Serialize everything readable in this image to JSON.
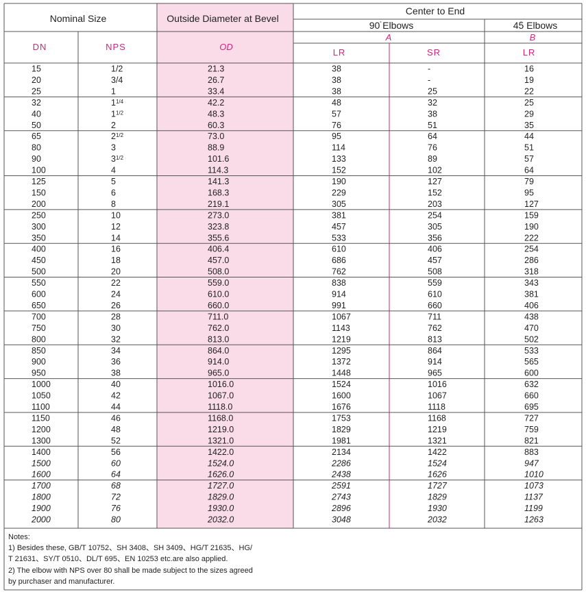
{
  "header": {
    "nominal_size": "Nominal Size",
    "outside_diameter": "Outside Diameter at Bevel",
    "center_to_end": "Center to End",
    "elbows90": "90  Elbows",
    "elbows45": "45  Elbows",
    "label_A": "A",
    "label_B": "B",
    "col_dn": "DN",
    "col_nps": "NPS",
    "col_od": "OD",
    "col_lr": "LR",
    "col_sr": "SR",
    "col_lr2": "LR"
  },
  "groups": [
    [
      [
        "15",
        "1/2",
        "21.3",
        "38",
        "-",
        "16"
      ],
      [
        "20",
        "3/4",
        "26.7",
        "38",
        "-",
        "19"
      ],
      [
        "25",
        "1",
        "33.4",
        "38",
        "25",
        "22"
      ]
    ],
    [
      [
        "32",
        "1 1/4",
        "42.2",
        "48",
        "32",
        "25"
      ],
      [
        "40",
        "1 1/2",
        "48.3",
        "57",
        "38",
        "29"
      ],
      [
        "50",
        "2",
        "60.3",
        "76",
        "51",
        "35"
      ]
    ],
    [
      [
        "65",
        "2 1/2",
        "73.0",
        "95",
        "64",
        "44"
      ],
      [
        "80",
        "3",
        "88.9",
        "114",
        "76",
        "51"
      ],
      [
        "90",
        "3 1/2",
        "101.6",
        "133",
        "89",
        "57"
      ],
      [
        "100",
        "4",
        "114.3",
        "152",
        "102",
        "64"
      ]
    ],
    [
      [
        "125",
        "5",
        "141.3",
        "190",
        "127",
        "79"
      ],
      [
        "150",
        "6",
        "168.3",
        "229",
        "152",
        "95"
      ],
      [
        "200",
        "8",
        "219.1",
        "305",
        "203",
        "127"
      ]
    ],
    [
      [
        "250",
        "10",
        "273.0",
        "381",
        "254",
        "159"
      ],
      [
        "300",
        "12",
        "323.8",
        "457",
        "305",
        "190"
      ],
      [
        "350",
        "14",
        "355.6",
        "533",
        "356",
        "222"
      ]
    ],
    [
      [
        "400",
        "16",
        "406.4",
        "610",
        "406",
        "254"
      ],
      [
        "450",
        "18",
        "457.0",
        "686",
        "457",
        "286"
      ],
      [
        "500",
        "20",
        "508.0",
        "762",
        "508",
        "318"
      ]
    ],
    [
      [
        "550",
        "22",
        "559.0",
        "838",
        "559",
        "343"
      ],
      [
        "600",
        "24",
        "610.0",
        "914",
        "610",
        "381"
      ],
      [
        "650",
        "26",
        "660.0",
        "991",
        "660",
        "406"
      ]
    ],
    [
      [
        "700",
        "28",
        "711.0",
        "1067",
        "711",
        "438"
      ],
      [
        "750",
        "30",
        "762.0",
        "1143",
        "762",
        "470"
      ],
      [
        "800",
        "32",
        "813.0",
        "1219",
        "813",
        "502"
      ]
    ],
    [
      [
        "850",
        "34",
        "864.0",
        "1295",
        "864",
        "533"
      ],
      [
        "900",
        "36",
        "914.0",
        "1372",
        "914",
        "565"
      ],
      [
        "950",
        "38",
        "965.0",
        "1448",
        "965",
        "600"
      ]
    ],
    [
      [
        "1000",
        "40",
        "1016.0",
        "1524",
        "1016",
        "632"
      ],
      [
        "1050",
        "42",
        "1067.0",
        "1600",
        "1067",
        "660"
      ],
      [
        "1100",
        "44",
        "1118.0",
        "1676",
        "1118",
        "695"
      ]
    ],
    [
      [
        "1150",
        "46",
        "1168.0",
        "1753",
        "1168",
        "727"
      ],
      [
        "1200",
        "48",
        "1219.0",
        "1829",
        "1219",
        "759"
      ],
      [
        "1300",
        "52",
        "1321.0",
        "1981",
        "1321",
        "821"
      ]
    ],
    [
      [
        "1400",
        "56",
        "1422.0",
        "2134",
        "1422",
        "883"
      ],
      [
        "1500",
        "60",
        "1524.0",
        "2286",
        "1524",
        "947"
      ],
      [
        "1600",
        "64",
        "1626.0",
        "2438",
        "1626",
        "1010"
      ]
    ],
    [
      [
        "1700",
        "68",
        "1727.0",
        "2591",
        "1727",
        "1073"
      ],
      [
        "1800",
        "72",
        "1829.0",
        "2743",
        "1829",
        "1137"
      ],
      [
        "1900",
        "76",
        "1930.0",
        "2896",
        "1930",
        "1199"
      ],
      [
        "2000",
        "80",
        "2032.0",
        "3048",
        "2032",
        "1263"
      ]
    ]
  ],
  "notes": {
    "title": "Notes:",
    "lines": [
      "1)  Besides these, GB/T 10752、SH 3408、SH 3409、HG/T 21635、HG/",
      "     T 21631、SY/T 0510、DL/T 695、EN 10253 etc.are also applied.",
      "2)  The elbow with NPS over 80 shall be made subject to the sizes agreed",
      "     by purchaser and manufacturer."
    ]
  },
  "colors": {
    "accent": "#d6217d",
    "od_fill": "#fadbe8",
    "line": "#555555"
  }
}
